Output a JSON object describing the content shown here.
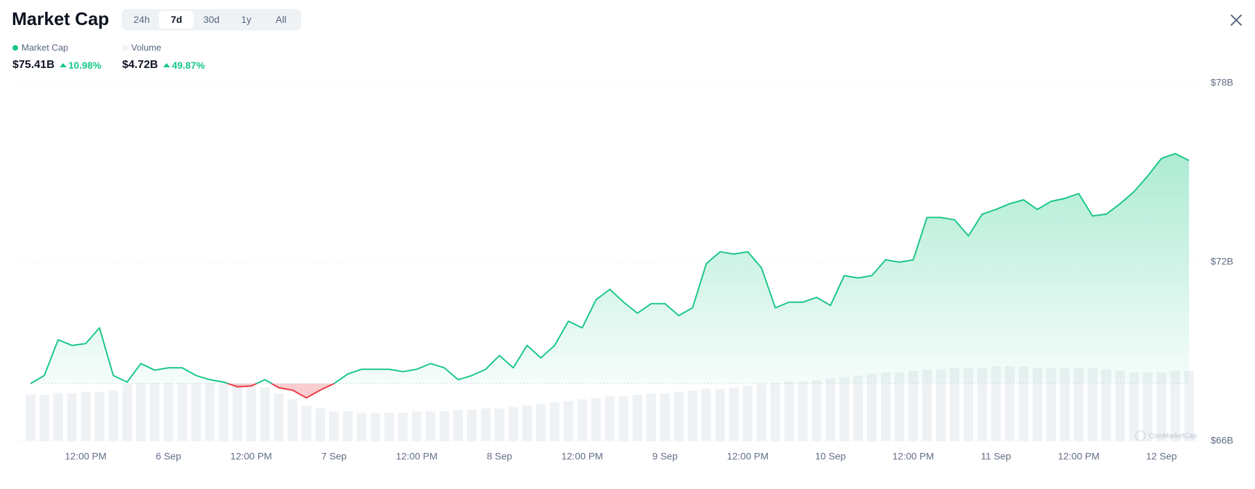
{
  "chart_data": {
    "type": "line",
    "title": "Market Cap",
    "tabs": [
      "24h",
      "7d",
      "30d",
      "1y",
      "All"
    ],
    "active_tab": "7d",
    "watermark": "CoinMarketCap",
    "x": [
      "5 Sep 04:00",
      "5 Sep 06:00",
      "5 Sep 08:00",
      "5 Sep 10:00",
      "5 Sep 12:00",
      "5 Sep 14:00",
      "5 Sep 16:00",
      "5 Sep 18:00",
      "5 Sep 20:00",
      "5 Sep 22:00",
      "6 Sep 00:00",
      "6 Sep 02:00",
      "6 Sep 04:00",
      "6 Sep 06:00",
      "6 Sep 08:00",
      "6 Sep 10:00",
      "6 Sep 12:00",
      "6 Sep 14:00",
      "6 Sep 16:00",
      "6 Sep 18:00",
      "6 Sep 20:00",
      "6 Sep 22:00",
      "7 Sep 00:00",
      "7 Sep 02:00",
      "7 Sep 04:00",
      "7 Sep 06:00",
      "7 Sep 08:00",
      "7 Sep 10:00",
      "7 Sep 12:00",
      "7 Sep 14:00",
      "7 Sep 16:00",
      "7 Sep 18:00",
      "7 Sep 20:00",
      "7 Sep 22:00",
      "8 Sep 00:00",
      "8 Sep 02:00",
      "8 Sep 04:00",
      "8 Sep 06:00",
      "8 Sep 08:00",
      "8 Sep 10:00",
      "8 Sep 12:00",
      "8 Sep 14:00",
      "8 Sep 16:00",
      "8 Sep 18:00",
      "8 Sep 20:00",
      "8 Sep 22:00",
      "9 Sep 00:00",
      "9 Sep 02:00",
      "9 Sep 04:00",
      "9 Sep 06:00",
      "9 Sep 08:00",
      "9 Sep 10:00",
      "9 Sep 12:00",
      "9 Sep 14:00",
      "9 Sep 16:00",
      "9 Sep 18:00",
      "9 Sep 20:00",
      "9 Sep 22:00",
      "10 Sep 00:00",
      "10 Sep 02:00",
      "10 Sep 04:00",
      "10 Sep 06:00",
      "10 Sep 08:00",
      "10 Sep 10:00",
      "10 Sep 12:00",
      "10 Sep 14:00",
      "10 Sep 16:00",
      "10 Sep 18:00",
      "10 Sep 20:00",
      "10 Sep 22:00",
      "11 Sep 00:00",
      "11 Sep 02:00",
      "11 Sep 04:00",
      "11 Sep 06:00",
      "11 Sep 08:00",
      "11 Sep 10:00",
      "11 Sep 12:00",
      "11 Sep 14:00",
      "11 Sep 16:00",
      "11 Sep 18:00",
      "11 Sep 20:00",
      "11 Sep 22:00",
      "12 Sep 00:00",
      "12 Sep 02:00",
      "12 Sep 04:00"
    ],
    "series": [
      {
        "name": "Market Cap",
        "color": "#16c784",
        "down_color": "#ea3943",
        "latest": "$75.41B",
        "change": "10.98%",
        "values": [
          67.93,
          68.2,
          69.4,
          69.21,
          69.27,
          69.8,
          68.2,
          67.98,
          68.6,
          68.38,
          68.46,
          68.46,
          68.2,
          68.06,
          67.98,
          67.82,
          67.85,
          68.06,
          67.79,
          67.71,
          67.45,
          67.71,
          67.93,
          68.25,
          68.41,
          68.41,
          68.41,
          68.33,
          68.41,
          68.6,
          68.46,
          68.06,
          68.2,
          68.41,
          68.87,
          68.46,
          69.21,
          68.79,
          69.21,
          70.02,
          69.8,
          70.74,
          71.09,
          70.66,
          70.29,
          70.61,
          70.61,
          70.21,
          70.47,
          71.95,
          72.35,
          72.27,
          72.35,
          71.81,
          70.47,
          70.66,
          70.66,
          70.82,
          70.55,
          71.55,
          71.47,
          71.55,
          72.08,
          72.0,
          72.08,
          73.5,
          73.5,
          73.42,
          72.88,
          73.61,
          73.77,
          73.96,
          74.09,
          73.77,
          74.04,
          74.14,
          74.3,
          73.55,
          73.61,
          73.96,
          74.36,
          74.89,
          75.48,
          75.64,
          75.41
        ]
      },
      {
        "name": "Volume",
        "color": "#eff2f5",
        "latest": "$4.72B",
        "change": "49.87%",
        "axis": "y2",
        "values": [
          3.1,
          3.1,
          3.2,
          3.2,
          3.3,
          3.3,
          3.4,
          3.8,
          3.9,
          3.9,
          3.9,
          3.9,
          3.9,
          3.9,
          3.8,
          3.8,
          3.7,
          3.6,
          3.2,
          2.8,
          2.4,
          2.2,
          2.0,
          2.0,
          1.9,
          1.9,
          1.9,
          1.9,
          2.0,
          2.0,
          2.0,
          2.1,
          2.1,
          2.2,
          2.2,
          2.3,
          2.4,
          2.5,
          2.6,
          2.7,
          2.8,
          2.9,
          3.0,
          3.0,
          3.1,
          3.2,
          3.2,
          3.3,
          3.4,
          3.5,
          3.5,
          3.6,
          3.7,
          3.8,
          3.9,
          4.0,
          4.0,
          4.1,
          4.2,
          4.3,
          4.4,
          4.5,
          4.6,
          4.6,
          4.7,
          4.8,
          4.8,
          4.9,
          4.9,
          4.9,
          5.0,
          5.0,
          5.0,
          4.9,
          4.9,
          4.9,
          4.9,
          4.9,
          4.8,
          4.7,
          4.6,
          4.6,
          4.6,
          4.7,
          4.72
        ]
      }
    ],
    "xlim": [
      "5 Sep 04:00",
      "12 Sep 04:00"
    ],
    "xticks": [
      {
        "value": "5 Sep 12:00",
        "label": "12:00 PM"
      },
      {
        "value": "6 Sep 00:00",
        "label": "6 Sep"
      },
      {
        "value": "6 Sep 12:00",
        "label": "12:00 PM"
      },
      {
        "value": "7 Sep 00:00",
        "label": "7 Sep"
      },
      {
        "value": "7 Sep 12:00",
        "label": "12:00 PM"
      },
      {
        "value": "8 Sep 00:00",
        "label": "8 Sep"
      },
      {
        "value": "8 Sep 12:00",
        "label": "12:00 PM"
      },
      {
        "value": "9 Sep 00:00",
        "label": "9 Sep"
      },
      {
        "value": "9 Sep 12:00",
        "label": "12:00 PM"
      },
      {
        "value": "10 Sep 00:00",
        "label": "10 Sep"
      },
      {
        "value": "10 Sep 12:00",
        "label": "12:00 PM"
      },
      {
        "value": "11 Sep 00:00",
        "label": "11 Sep"
      },
      {
        "value": "11 Sep 12:00",
        "label": "12:00 PM"
      },
      {
        "value": "12 Sep 00:00",
        "label": "12 Sep"
      }
    ],
    "ylim": [
      66,
      78
    ],
    "yticks": [
      {
        "value": 66,
        "label": "$66B"
      },
      {
        "value": 72,
        "label": "$72B"
      },
      {
        "value": 78,
        "label": "$78B"
      }
    ],
    "y2lim": [
      0,
      24
    ],
    "grid": true
  }
}
